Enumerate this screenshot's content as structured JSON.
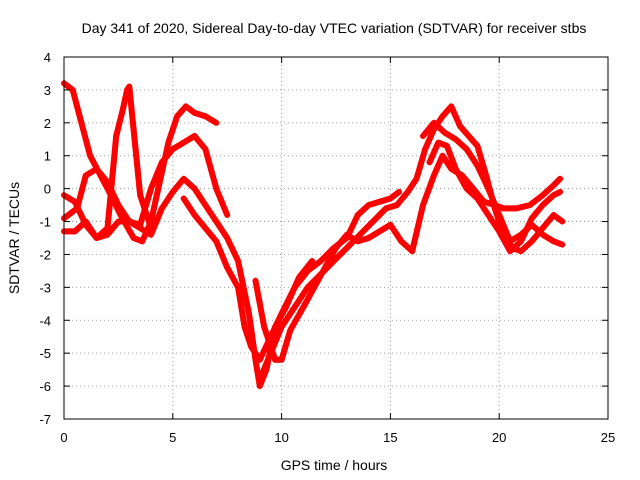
{
  "chart_data": {
    "type": "scatter",
    "title": "Day 341 of 2020, Sidereal Day-to-day VTEC variation (SDTVAR) for receiver stbs",
    "xlabel": "GPS time / hours",
    "ylabel": "SDTVAR / TECUs",
    "xlim": [
      0,
      25
    ],
    "ylim": [
      -7,
      4
    ],
    "xticks": [
      "0",
      "5",
      "10",
      "15",
      "20",
      "25"
    ],
    "yticks": [
      "-7",
      "-6",
      "-5",
      "-4",
      "-3",
      "-2",
      "-1",
      "0",
      "1",
      "2",
      "3",
      "4"
    ],
    "grid": true,
    "marker": "plus",
    "color": "#ff0000",
    "series": [
      {
        "values": [
          [
            0,
            3.2
          ],
          [
            0.4,
            3.0
          ],
          [
            0.8,
            2.0
          ],
          [
            1.2,
            1.0
          ],
          [
            1.6,
            0.5
          ],
          [
            2.0,
            0.0
          ],
          [
            2.6,
            -0.8
          ],
          [
            3.2,
            -1.5
          ],
          [
            3.6,
            -1.6
          ],
          [
            4.0,
            -1.0
          ],
          [
            4.4,
            0.2
          ],
          [
            4.8,
            1.4
          ],
          [
            5.2,
            2.2
          ],
          [
            5.6,
            2.5
          ],
          [
            6.0,
            2.3
          ],
          [
            6.5,
            2.2
          ],
          [
            7.0,
            2.0
          ]
        ]
      },
      {
        "values": [
          [
            0,
            -0.2
          ],
          [
            0.5,
            -0.4
          ],
          [
            1.0,
            -1.1
          ],
          [
            1.5,
            -1.5
          ],
          [
            2.0,
            -1.2
          ],
          [
            2.4,
            1.6
          ],
          [
            2.7,
            2.4
          ],
          [
            2.9,
            3.0
          ],
          [
            3.0,
            3.1
          ],
          [
            3.5,
            -0.2
          ],
          [
            4.0,
            -1.2
          ]
        ]
      },
      {
        "values": [
          [
            0,
            -0.9
          ],
          [
            0.6,
            -0.6
          ],
          [
            1.0,
            0.4
          ],
          [
            1.5,
            0.6
          ],
          [
            2.0,
            0.2
          ],
          [
            2.5,
            -0.5
          ],
          [
            3.0,
            -1.0
          ],
          [
            3.5,
            -1.1
          ],
          [
            4.0,
            0.0
          ],
          [
            4.5,
            0.8
          ],
          [
            5.0,
            1.2
          ],
          [
            5.5,
            1.4
          ],
          [
            6.0,
            1.6
          ],
          [
            6.5,
            1.2
          ],
          [
            7.0,
            0.0
          ],
          [
            7.5,
            -0.8
          ]
        ]
      },
      {
        "values": [
          [
            0,
            -1.3
          ],
          [
            0.5,
            -1.3
          ],
          [
            1.0,
            -1.0
          ],
          [
            1.5,
            -1.5
          ],
          [
            2.0,
            -1.4
          ],
          [
            2.5,
            -1.0
          ],
          [
            3.0,
            -1.0
          ],
          [
            3.5,
            -1.2
          ],
          [
            4.0,
            -1.4
          ],
          [
            4.5,
            -0.6
          ],
          [
            5.0,
            -0.1
          ],
          [
            5.5,
            0.3
          ],
          [
            6.0,
            0.0
          ],
          [
            6.5,
            -0.5
          ],
          [
            7.0,
            -1.0
          ],
          [
            7.5,
            -1.5
          ],
          [
            8.0,
            -2.2
          ],
          [
            8.5,
            -3.8
          ],
          [
            8.8,
            -5.2
          ],
          [
            9.0,
            -6.0
          ],
          [
            9.3,
            -5.5
          ],
          [
            9.7,
            -4.2
          ],
          [
            10.2,
            -3.6
          ],
          [
            10.8,
            -2.7
          ],
          [
            11.4,
            -2.2
          ]
        ]
      },
      {
        "values": [
          [
            5.5,
            -0.3
          ],
          [
            6.0,
            -0.8
          ],
          [
            6.5,
            -1.2
          ],
          [
            7.0,
            -1.6
          ],
          [
            7.5,
            -2.4
          ],
          [
            8.0,
            -3.0
          ],
          [
            8.3,
            -4.2
          ],
          [
            8.6,
            -4.8
          ],
          [
            9.0,
            -5.2
          ],
          [
            9.5,
            -4.5
          ],
          [
            10.0,
            -3.8
          ],
          [
            10.6,
            -3.0
          ],
          [
            11.2,
            -2.5
          ],
          [
            11.8,
            -2.2
          ],
          [
            12.4,
            -1.8
          ],
          [
            13.0,
            -1.5
          ],
          [
            13.5,
            -0.8
          ],
          [
            14.0,
            -0.5
          ],
          [
            14.5,
            -0.4
          ],
          [
            15.0,
            -0.3
          ],
          [
            15.4,
            -0.1
          ]
        ]
      },
      {
        "values": [
          [
            8.8,
            -2.8
          ],
          [
            9.2,
            -4.2
          ],
          [
            9.7,
            -5.2
          ],
          [
            10.0,
            -5.2
          ],
          [
            10.4,
            -4.3
          ],
          [
            11.0,
            -3.6
          ],
          [
            11.5,
            -3.0
          ],
          [
            12.0,
            -2.4
          ],
          [
            12.5,
            -1.8
          ],
          [
            13.0,
            -1.4
          ],
          [
            13.5,
            -1.6
          ],
          [
            14.0,
            -1.5
          ],
          [
            14.5,
            -1.3
          ],
          [
            15.0,
            -1.1
          ],
          [
            15.5,
            -1.6
          ],
          [
            16.0,
            -1.9
          ],
          [
            16.5,
            -0.5
          ],
          [
            17.0,
            0.4
          ],
          [
            17.4,
            1.0
          ],
          [
            17.8,
            0.6
          ],
          [
            18.3,
            0.4
          ],
          [
            18.8,
            0.0
          ],
          [
            19.3,
            -0.4
          ],
          [
            19.8,
            -0.5
          ],
          [
            20.2,
            -0.6
          ],
          [
            20.8,
            -0.6
          ],
          [
            21.4,
            -0.5
          ],
          [
            22.0,
            -0.2
          ],
          [
            22.5,
            0.1
          ],
          [
            22.8,
            0.3
          ]
        ]
      },
      {
        "values": [
          [
            9.0,
            -5.8
          ],
          [
            9.5,
            -5.0
          ],
          [
            10.0,
            -4.2
          ],
          [
            10.6,
            -3.6
          ],
          [
            11.2,
            -3.0
          ],
          [
            11.8,
            -2.6
          ],
          [
            12.4,
            -2.2
          ],
          [
            13.0,
            -1.8
          ],
          [
            13.6,
            -1.4
          ],
          [
            14.2,
            -1.0
          ],
          [
            14.8,
            -0.6
          ],
          [
            15.3,
            -0.5
          ],
          [
            15.8,
            -0.1
          ],
          [
            16.2,
            0.3
          ],
          [
            16.6,
            1.2
          ],
          [
            17.0,
            1.8
          ],
          [
            17.4,
            2.2
          ],
          [
            17.8,
            2.5
          ],
          [
            18.2,
            1.9
          ],
          [
            18.6,
            1.6
          ],
          [
            19.0,
            1.3
          ],
          [
            19.4,
            0.4
          ],
          [
            19.8,
            -0.6
          ],
          [
            20.2,
            -1.4
          ],
          [
            20.6,
            -1.8
          ],
          [
            21.0,
            -1.9
          ],
          [
            21.5,
            -1.6
          ],
          [
            22.0,
            -1.2
          ],
          [
            22.5,
            -0.8
          ],
          [
            22.9,
            -1.0
          ]
        ]
      },
      {
        "values": [
          [
            16.5,
            1.6
          ],
          [
            17.0,
            2.0
          ],
          [
            17.5,
            1.7
          ],
          [
            18.0,
            1.5
          ],
          [
            18.5,
            1.2
          ],
          [
            19.0,
            0.7
          ],
          [
            19.5,
            0.0
          ],
          [
            20.0,
            -0.8
          ],
          [
            20.5,
            -1.6
          ],
          [
            21.0,
            -1.4
          ],
          [
            21.5,
            -1.1
          ],
          [
            22.0,
            -1.4
          ],
          [
            22.5,
            -1.6
          ],
          [
            22.9,
            -1.7
          ]
        ]
      },
      {
        "values": [
          [
            16.8,
            0.8
          ],
          [
            17.2,
            1.4
          ],
          [
            17.6,
            1.3
          ],
          [
            18.0,
            0.6
          ],
          [
            18.5,
            0.0
          ],
          [
            19.0,
            -0.3
          ],
          [
            19.5,
            -0.8
          ],
          [
            20.0,
            -1.3
          ],
          [
            20.5,
            -1.9
          ],
          [
            21.0,
            -1.6
          ],
          [
            21.5,
            -0.9
          ],
          [
            22.0,
            -0.5
          ],
          [
            22.5,
            -0.2
          ],
          [
            22.8,
            -0.1
          ]
        ]
      }
    ]
  }
}
